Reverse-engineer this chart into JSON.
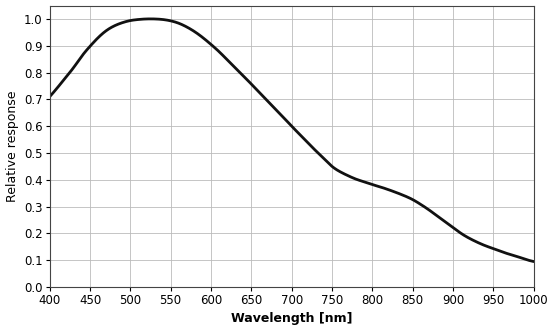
{
  "title": "",
  "xlabel": "Wavelength [nm]",
  "ylabel": "Relative response",
  "xlim": [
    400,
    1000
  ],
  "ylim": [
    0.0,
    1.05
  ],
  "yticks": [
    0.0,
    0.1,
    0.2,
    0.3,
    0.4,
    0.5,
    0.6,
    0.7,
    0.8,
    0.9,
    1.0
  ],
  "xticks": [
    400,
    450,
    500,
    550,
    600,
    650,
    700,
    750,
    800,
    850,
    900,
    950,
    1000
  ],
  "line_color": "#111111",
  "line_width": 2.0,
  "background_color": "#ffffff",
  "grid_color": "#bbbbbb",
  "wavelengths": [
    400,
    410,
    420,
    430,
    440,
    450,
    460,
    470,
    480,
    490,
    500,
    510,
    520,
    530,
    540,
    550,
    560,
    570,
    580,
    590,
    600,
    610,
    620,
    630,
    640,
    650,
    660,
    670,
    680,
    690,
    700,
    710,
    720,
    730,
    740,
    750,
    760,
    770,
    780,
    790,
    800,
    810,
    820,
    830,
    840,
    850,
    860,
    870,
    880,
    890,
    900,
    910,
    920,
    930,
    940,
    950,
    960,
    970,
    980,
    990,
    1000
  ],
  "response": [
    0.71,
    0.745,
    0.782,
    0.82,
    0.862,
    0.898,
    0.93,
    0.956,
    0.974,
    0.986,
    0.994,
    0.998,
    1.0,
    1.0,
    0.998,
    0.993,
    0.984,
    0.97,
    0.952,
    0.93,
    0.905,
    0.878,
    0.848,
    0.818,
    0.788,
    0.757,
    0.726,
    0.695,
    0.663,
    0.632,
    0.6,
    0.569,
    0.538,
    0.508,
    0.479,
    0.45,
    0.43,
    0.415,
    0.402,
    0.392,
    0.382,
    0.373,
    0.363,
    0.352,
    0.34,
    0.326,
    0.308,
    0.288,
    0.266,
    0.244,
    0.222,
    0.2,
    0.182,
    0.167,
    0.154,
    0.143,
    0.132,
    0.122,
    0.113,
    0.103,
    0.095
  ]
}
